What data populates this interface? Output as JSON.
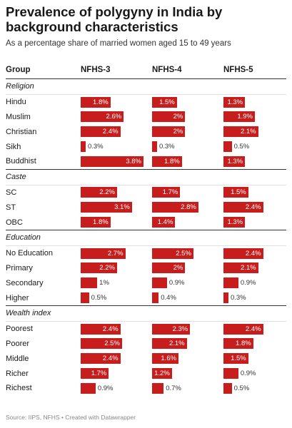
{
  "title": "Prevalence of polygyny in India by background characteristics",
  "subtitle": "As a percentage share of married women aged 15 to 49 years",
  "footer": "Source: IIPS, NFHS • Created with Datawrapper",
  "colors": {
    "bar": "#c71e1d"
  },
  "chart_data": {
    "type": "table",
    "columns": [
      "Group",
      "NFHS-3",
      "NFHS-4",
      "NFHS-5"
    ],
    "max_value": 3.8,
    "groups": [
      {
        "name": "Religion",
        "rows": [
          {
            "label": "Hindu",
            "values": [
              1.8,
              1.5,
              1.3
            ],
            "display": [
              "1.8%",
              "1.5%",
              "1.3%"
            ]
          },
          {
            "label": "Muslim",
            "values": [
              2.6,
              2,
              1.9
            ],
            "display": [
              "2.6%",
              "2%",
              "1.9%"
            ]
          },
          {
            "label": "Christian",
            "values": [
              2.4,
              2,
              2.1
            ],
            "display": [
              "2.4%",
              "2%",
              "2.1%"
            ]
          },
          {
            "label": "Sikh",
            "values": [
              0.3,
              0.3,
              0.5
            ],
            "display": [
              "0.3%",
              "0.3%",
              "0.5%"
            ]
          },
          {
            "label": "Buddhist",
            "values": [
              3.8,
              1.8,
              1.3
            ],
            "display": [
              "3.8%",
              "1.8%",
              "1.3%"
            ]
          }
        ]
      },
      {
        "name": "Caste",
        "rows": [
          {
            "label": "SC",
            "values": [
              2.2,
              1.7,
              1.5
            ],
            "display": [
              "2.2%",
              "1.7%",
              "1.5%"
            ]
          },
          {
            "label": "ST",
            "values": [
              3.1,
              2.8,
              2.4
            ],
            "display": [
              "3.1%",
              "2.8%",
              "2.4%"
            ]
          },
          {
            "label": "OBC",
            "values": [
              1.8,
              1.4,
              1.3
            ],
            "display": [
              "1.8%",
              "1.4%",
              "1.3%"
            ]
          }
        ]
      },
      {
        "name": "Education",
        "rows": [
          {
            "label": "No Education",
            "values": [
              2.7,
              2.5,
              2.4
            ],
            "display": [
              "2.7%",
              "2.5%",
              "2.4%"
            ]
          },
          {
            "label": "Primary",
            "values": [
              2.2,
              2,
              2.1
            ],
            "display": [
              "2.2%",
              "2%",
              "2.1%"
            ]
          },
          {
            "label": "Secondary",
            "values": [
              1,
              0.9,
              0.9
            ],
            "display": [
              "1%",
              "0.9%",
              "0.9%"
            ]
          },
          {
            "label": "Higher",
            "values": [
              0.5,
              0.4,
              0.3
            ],
            "display": [
              "0.5%",
              "0.4%",
              "0.3%"
            ]
          }
        ]
      },
      {
        "name": "Wealth index",
        "rows": [
          {
            "label": "Poorest",
            "values": [
              2.4,
              2.3,
              2.4
            ],
            "display": [
              "2.4%",
              "2.3%",
              "2.4%"
            ]
          },
          {
            "label": "Poorer",
            "values": [
              2.5,
              2.1,
              1.8
            ],
            "display": [
              "2.5%",
              "2.1%",
              "1.8%"
            ]
          },
          {
            "label": "Middle",
            "values": [
              2.4,
              1.6,
              1.5
            ],
            "display": [
              "2.4%",
              "1.6%",
              "1.5%"
            ]
          },
          {
            "label": "Richer",
            "values": [
              1.7,
              1.2,
              0.9
            ],
            "display": [
              "1.7%",
              "1.2%",
              "0.9%"
            ]
          },
          {
            "label": "Richest",
            "values": [
              0.9,
              0.7,
              0.5
            ],
            "display": [
              "0.9%",
              "0.7%",
              "0.5%"
            ]
          }
        ]
      }
    ]
  }
}
